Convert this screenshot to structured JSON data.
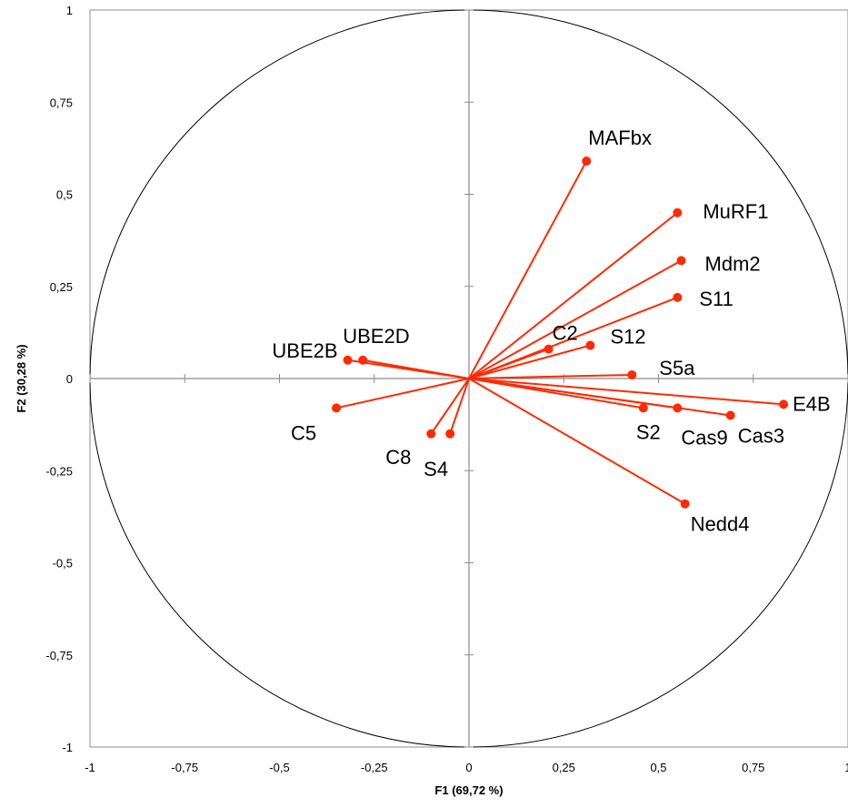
{
  "chart_data": {
    "type": "scatter",
    "subtype": "pca-correlation-circle",
    "title": "",
    "xlabel": "F1 (69,72 %)",
    "ylabel": "F2 (30,28 %)",
    "xlim": [
      -1,
      1
    ],
    "ylim": [
      -1,
      1
    ],
    "x_ticks": [
      "-1",
      "-0,75",
      "-0,5",
      "-0,25",
      "0",
      "0,25",
      "0,5",
      "0,75",
      "1"
    ],
    "y_ticks": [
      "-1",
      "-0,75",
      "-0,5",
      "-0,25",
      "0",
      "0,25",
      "0,5",
      "0,75",
      "1"
    ],
    "grid": false,
    "unit_circle": true,
    "vectors_from_origin": true,
    "marker_color": "#ff2a00",
    "line_color": "#ff2a00",
    "axis_color": "#8c8c8c",
    "circle_color": "#000000",
    "points": [
      {
        "label": "MAFbx",
        "x": 0.31,
        "y": 0.59
      },
      {
        "label": "MuRF1",
        "x": 0.55,
        "y": 0.45
      },
      {
        "label": "Mdm2",
        "x": 0.56,
        "y": 0.32
      },
      {
        "label": "S11",
        "x": 0.55,
        "y": 0.22
      },
      {
        "label": "C2",
        "x": 0.21,
        "y": 0.08
      },
      {
        "label": "S12",
        "x": 0.32,
        "y": 0.09
      },
      {
        "label": "S5a",
        "x": 0.43,
        "y": 0.01
      },
      {
        "label": "E4B",
        "x": 0.83,
        "y": -0.07
      },
      {
        "label": "S2",
        "x": 0.46,
        "y": -0.08
      },
      {
        "label": "Cas9",
        "x": 0.55,
        "y": -0.08
      },
      {
        "label": "Cas3",
        "x": 0.69,
        "y": -0.1
      },
      {
        "label": "Nedd4",
        "x": 0.57,
        "y": -0.34
      },
      {
        "label": "UBE2B",
        "x": -0.32,
        "y": 0.05
      },
      {
        "label": "UBE2D",
        "x": -0.28,
        "y": 0.05
      },
      {
        "label": "C5",
        "x": -0.35,
        "y": -0.08
      },
      {
        "label": "C8",
        "x": -0.1,
        "y": -0.15
      },
      {
        "label": "S4",
        "x": -0.05,
        "y": -0.15
      }
    ]
  }
}
